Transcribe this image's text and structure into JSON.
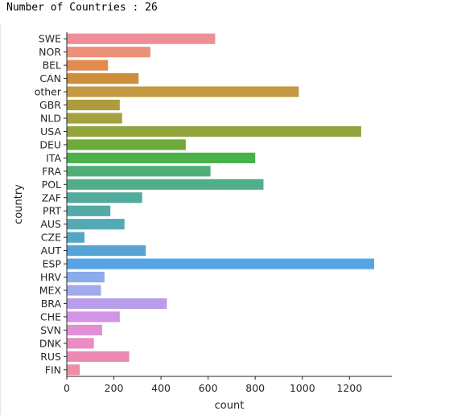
{
  "output": {
    "header_text": "Number of Countries : 26"
  },
  "chart_data": {
    "type": "bar",
    "orientation": "horizontal",
    "xlabel": "count",
    "ylabel": "country",
    "xlim": [
      0,
      1380
    ],
    "xticks": [
      0,
      200,
      400,
      600,
      800,
      1000,
      1200
    ],
    "categories": [
      "SWE",
      "NOR",
      "BEL",
      "CAN",
      "other",
      "GBR",
      "NLD",
      "USA",
      "DEU",
      "ITA",
      "FRA",
      "POL",
      "ZAF",
      "PRT",
      "AUS",
      "CZE",
      "AUT",
      "ESP",
      "HRV",
      "MEX",
      "BRA",
      "CHE",
      "SVN",
      "DNK",
      "RUS",
      "FIN"
    ],
    "values": [
      630,
      355,
      175,
      305,
      985,
      225,
      235,
      1250,
      505,
      800,
      610,
      835,
      320,
      185,
      245,
      75,
      335,
      1305,
      160,
      145,
      425,
      225,
      150,
      115,
      265,
      55
    ],
    "colors": [
      "#ee8f97",
      "#ed917b",
      "#e18b4e",
      "#cf8e3a",
      "#c39a41",
      "#ad9b3e",
      "#a4a13e",
      "#93a43d",
      "#6eaa3a",
      "#49b04a",
      "#4fae77",
      "#52ad8b",
      "#53ab9c",
      "#52a9a6",
      "#55a8b6",
      "#52a6c6",
      "#56a4d6",
      "#57a4e5",
      "#8aaceb",
      "#a1aaec",
      "#b99dec",
      "#d194e7",
      "#e28fd4",
      "#ea8cc5",
      "#ec8ab3",
      "#ee8ea6"
    ]
  }
}
